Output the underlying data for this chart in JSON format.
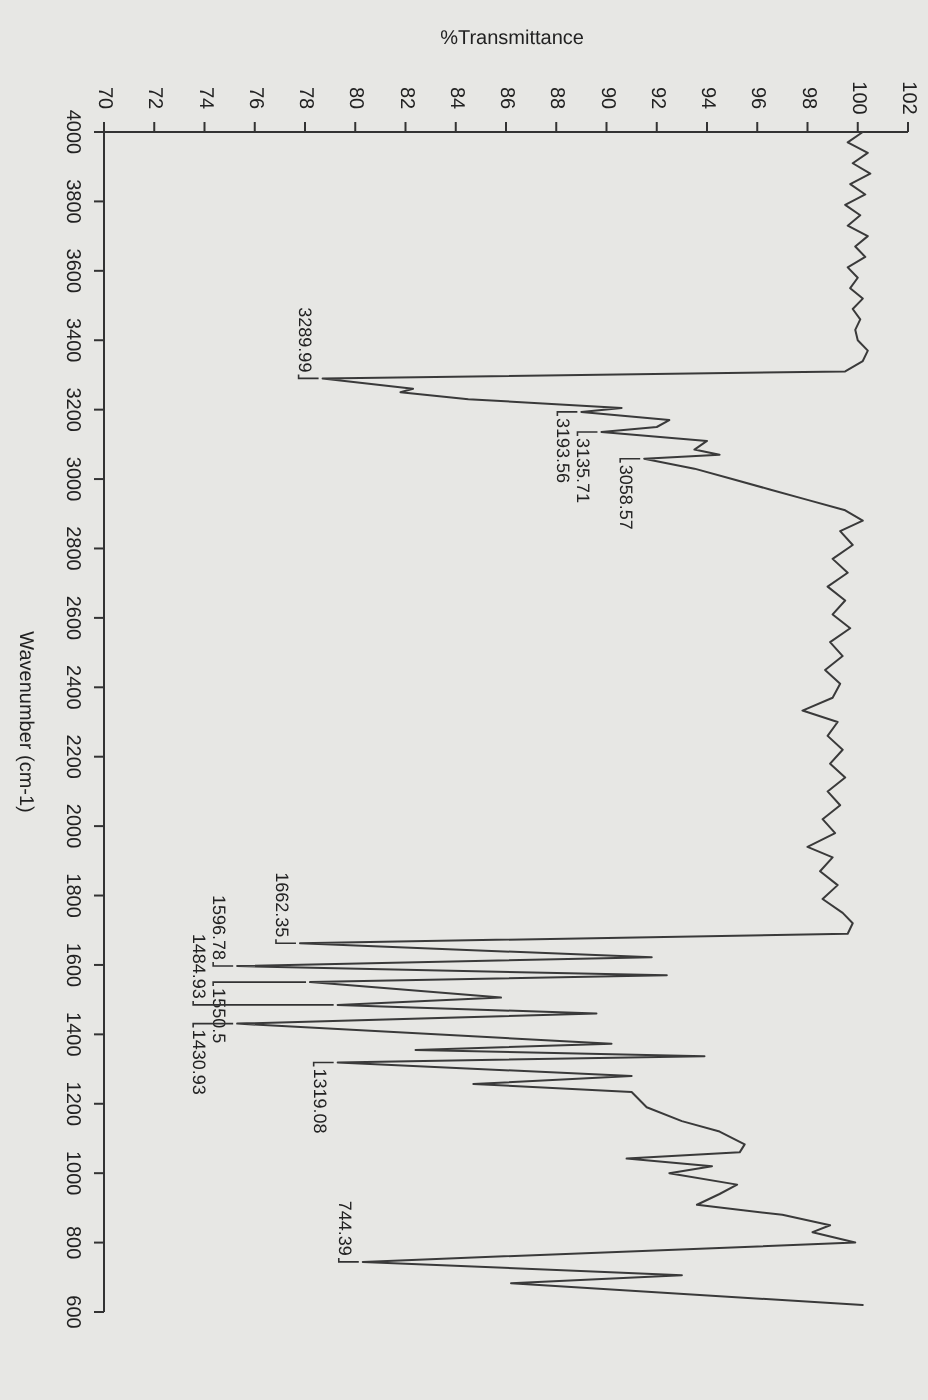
{
  "chart_data": {
    "type": "line",
    "xlabel": "%Transmittance",
    "ylabel": "Wavenumber (cm-1)",
    "xlim": [
      70,
      102
    ],
    "ylim": [
      600,
      4000
    ],
    "xticks": [
      70,
      72,
      74,
      76,
      78,
      80,
      82,
      84,
      86,
      88,
      90,
      92,
      94,
      96,
      98,
      100,
      102
    ],
    "yticks": [
      4000,
      3800,
      3600,
      3400,
      3200,
      3000,
      2800,
      2600,
      2400,
      2200,
      2000,
      1800,
      1600,
      1400,
      1200,
      1000,
      800,
      600
    ],
    "series": [
      {
        "color": "#3a3a3a",
        "x": [
          100.2,
          99.6,
          100.4,
          99.8,
          100.5,
          99.7,
          100.3,
          99.5,
          100.1,
          99.6,
          100.4,
          99.9,
          100.3,
          99.6,
          100,
          99.7,
          100.2,
          99.8,
          100.1,
          99.9,
          100,
          100.4,
          100.2,
          99.5,
          78.7,
          82.3,
          81.8,
          84.5,
          90.6,
          89,
          92.5,
          92,
          89.8,
          94,
          93.5,
          94.5,
          91.5,
          93.5,
          95,
          96.5,
          98,
          99.5,
          100.2,
          99.3,
          99.8,
          99,
          99.6,
          98.8,
          99.5,
          99,
          99.7,
          98.9,
          99.4,
          98.7,
          99.3,
          99,
          97.8,
          99.2,
          98.8,
          99.4,
          98.9,
          99.5,
          98.8,
          99.3,
          98.6,
          99.1,
          98,
          99,
          98.5,
          99.2,
          98.6,
          99.4,
          99.8,
          99.6,
          77.8,
          91.8,
          75.3,
          92.4,
          78.2,
          85.8,
          79.3,
          89.6,
          75.3,
          90.2,
          82.4,
          93.9,
          79.3,
          91,
          84.7,
          91,
          91.6,
          93,
          94.5,
          95.5,
          95.3,
          90.8,
          94.2,
          92.5,
          95.2,
          94.5,
          93.6,
          97,
          98.9,
          98.2,
          99.9,
          80.3,
          93,
          86.2,
          100.2
        ],
        "values": [
          4000,
          3970,
          3940,
          3910,
          3880,
          3850,
          3820,
          3790,
          3760,
          3730,
          3700,
          3670,
          3640,
          3610,
          3580,
          3550,
          3520,
          3490,
          3460,
          3430,
          3400,
          3370,
          3340,
          3310,
          3289.99,
          3260,
          3250,
          3230,
          3205,
          3193.56,
          3170,
          3150,
          3135.71,
          3110,
          3085,
          3070,
          3058.57,
          3030,
          3000,
          2970,
          2940,
          2910,
          2880,
          2850,
          2810,
          2770,
          2730,
          2690,
          2650,
          2610,
          2570,
          2530,
          2490,
          2450,
          2410,
          2370,
          2333,
          2300,
          2260,
          2220,
          2180,
          2140,
          2100,
          2060,
          2020,
          1980,
          1940,
          1910,
          1870,
          1830,
          1790,
          1750,
          1720,
          1690,
          1662.35,
          1622,
          1596.78,
          1570,
          1550.5,
          1506,
          1484.93,
          1460,
          1430.93,
          1373,
          1355,
          1337,
          1319.08,
          1280,
          1257,
          1234,
          1190,
          1150,
          1120,
          1083,
          1060,
          1042,
          1020,
          1000,
          967,
          940,
          909,
          880,
          850,
          830,
          800,
          744.39,
          706,
          683,
          620
        ]
      }
    ],
    "annotations": [
      {
        "text": "3289.99",
        "x": 78.7,
        "y": 3289.99
      },
      {
        "text": "3193.56",
        "x": 89,
        "y": 3193.56
      },
      {
        "text": "3135.71",
        "x": 89.8,
        "y": 3135.71
      },
      {
        "text": "3058.57",
        "x": 91.5,
        "y": 3058.57
      },
      {
        "text": "1662.35",
        "x": 77.8,
        "y": 1662.35
      },
      {
        "text": "1596.78",
        "x": 75.3,
        "y": 1596.78
      },
      {
        "text": "1550.5",
        "x": 78.2,
        "y": 1550.5
      },
      {
        "text": "1484.93",
        "x": 79.3,
        "y": 1484.93
      },
      {
        "text": "1430.93",
        "x": 75.3,
        "y": 1430.93
      },
      {
        "text": "1319.08",
        "x": 79.3,
        "y": 1319.08
      },
      {
        "text": "744.39",
        "x": 80.3,
        "y": 744.39
      }
    ]
  }
}
